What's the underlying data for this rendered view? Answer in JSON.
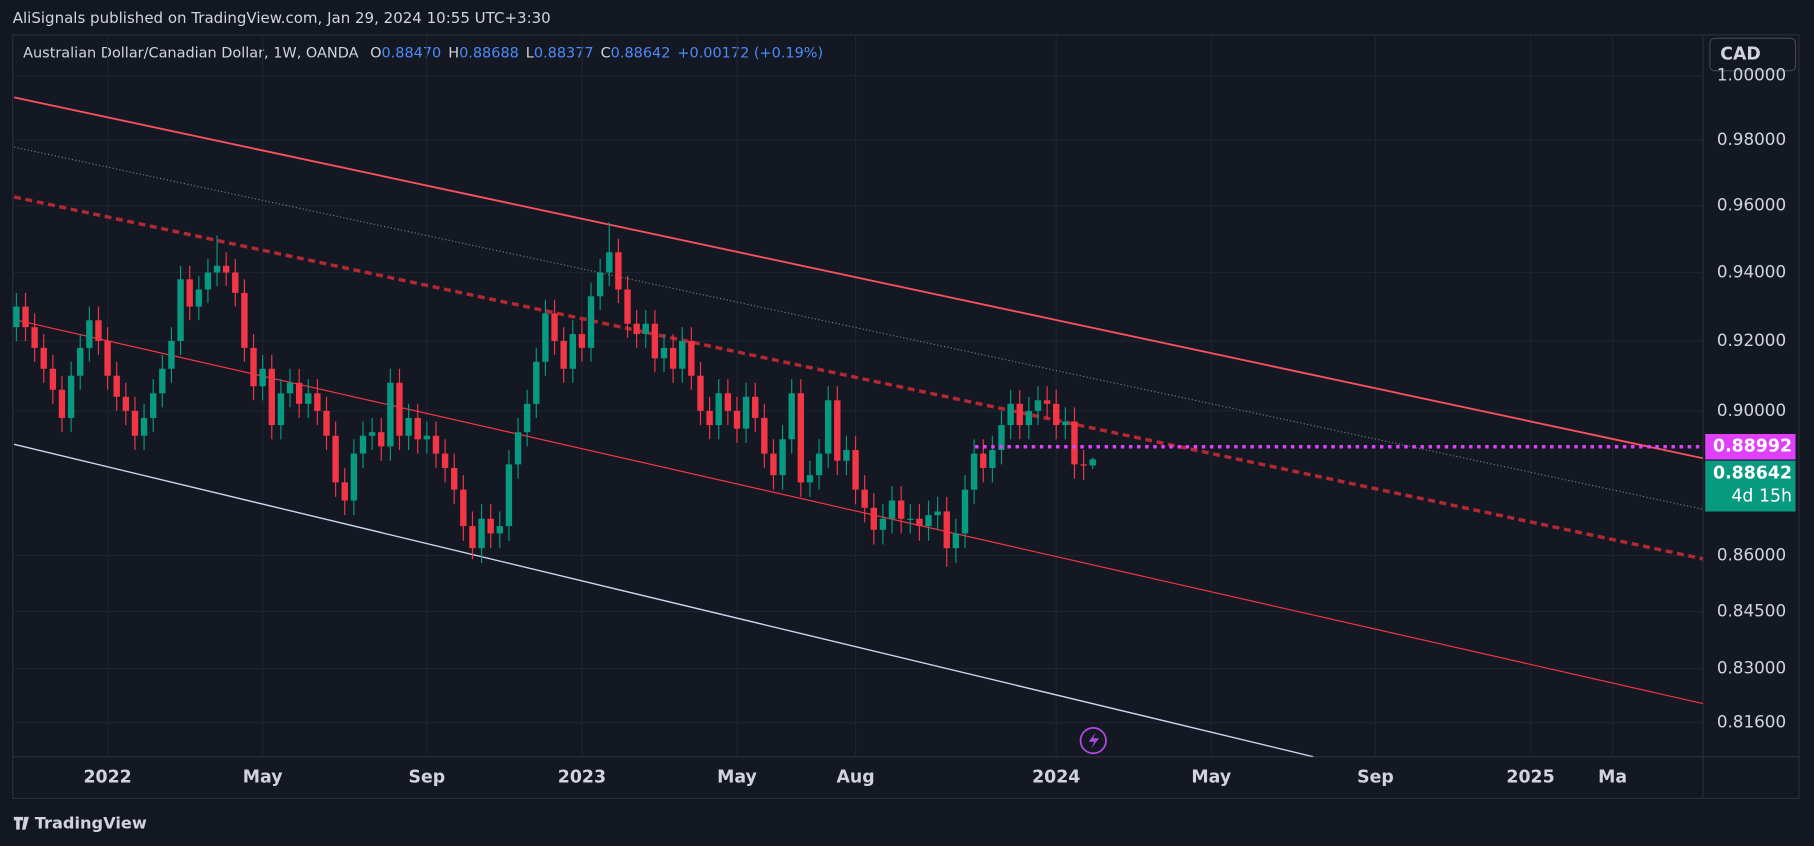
{
  "header": {
    "title": "AliSignals published on TradingView.com, Jan 29, 2024 10:55 UTC+3:30"
  },
  "footer": {
    "brand": "TradingView"
  },
  "currency_button": "CAD",
  "chart_data": {
    "type": "candlestick",
    "symbol": "Australian Dollar/Canadian Dollar, 1W, OANDA",
    "ohlc_legend": [
      {
        "key": "O",
        "value": "0.88470"
      },
      {
        "key": "H",
        "value": "0.88688"
      },
      {
        "key": "L",
        "value": "0.88377"
      },
      {
        "key": "C",
        "value": "0.88642"
      }
    ],
    "change": "+0.00172 (+0.19%)",
    "countdown": "4d 15h",
    "up_color": "#089981",
    "down_color": "#f23645",
    "log_scale": true,
    "grid": true,
    "ylim": [
      0.8073,
      1.0129
    ],
    "yticks": [
      {
        "value": 1,
        "label": "1.00000"
      },
      {
        "value": 0.98,
        "label": "0.98000"
      },
      {
        "value": 0.96,
        "label": "0.96000"
      },
      {
        "value": 0.94,
        "label": "0.94000"
      },
      {
        "value": 0.92,
        "label": "0.92000"
      },
      {
        "value": 0.9,
        "label": "0.90000"
      },
      {
        "value": 0.86,
        "label": "0.86000"
      },
      {
        "value": 0.845,
        "label": "0.84500"
      },
      {
        "value": 0.83,
        "label": "0.83000"
      },
      {
        "value": 0.816,
        "label": "0.81600"
      }
    ],
    "xlim": [
      -0.4,
      184.9
    ],
    "xticks": [
      {
        "value": 10,
        "label": "2022"
      },
      {
        "value": 27,
        "label": "May"
      },
      {
        "value": 45,
        "label": "Sep"
      },
      {
        "value": 62,
        "label": "2023"
      },
      {
        "value": 79,
        "label": "May"
      },
      {
        "value": 92,
        "label": "Aug"
      },
      {
        "value": 114,
        "label": "2024"
      },
      {
        "value": 131,
        "label": "May"
      },
      {
        "value": 149,
        "label": "Sep"
      },
      {
        "value": 166,
        "label": "2025"
      },
      {
        "value": 175,
        "label": "Ma"
      }
    ],
    "open": [
      0.924,
      0.93,
      0.924,
      0.918,
      0.912,
      0.906,
      0.898,
      0.91,
      0.918,
      0.926,
      0.92,
      0.91,
      0.904,
      0.9,
      0.893,
      0.898,
      0.905,
      0.912,
      0.92,
      0.938,
      0.93,
      0.935,
      0.94,
      0.942,
      0.94,
      0.934,
      0.918,
      0.907,
      0.912,
      0.896,
      0.905,
      0.908,
      0.902,
      0.905,
      0.9,
      0.893,
      0.88,
      0.875,
      0.888,
      0.893,
      0.894,
      0.89,
      0.908,
      0.893,
      0.898,
      0.892,
      0.893,
      0.888,
      0.884,
      0.878,
      0.868,
      0.862,
      0.87,
      0.866,
      0.868,
      0.885,
      0.894,
      0.902,
      0.914,
      0.928,
      0.92,
      0.912,
      0.922,
      0.918,
      0.933,
      0.94,
      0.946,
      0.935,
      0.925,
      0.922,
      0.925,
      0.915,
      0.918,
      0.912,
      0.92,
      0.91,
      0.9,
      0.896,
      0.905,
      0.9,
      0.895,
      0.904,
      0.898,
      0.888,
      0.882,
      0.892,
      0.905,
      0.88,
      0.882,
      0.888,
      0.903,
      0.886,
      0.889,
      0.878,
      0.873,
      0.867,
      0.87,
      0.875,
      0.87,
      0.87,
      0.868,
      0.871,
      0.872,
      0.862,
      0.866,
      0.878,
      0.888,
      0.884,
      0.889,
      0.896,
      0.902,
      0.896,
      0.9,
      0.903,
      0.902,
      0.896,
      0.897,
      0.885,
      0.8847
    ],
    "high": [
      0.934,
      0.934,
      0.928,
      0.922,
      0.916,
      0.91,
      0.914,
      0.922,
      0.93,
      0.93,
      0.924,
      0.914,
      0.908,
      0.904,
      0.902,
      0.909,
      0.916,
      0.924,
      0.942,
      0.942,
      0.939,
      0.944,
      0.951,
      0.946,
      0.944,
      0.938,
      0.922,
      0.916,
      0.916,
      0.909,
      0.912,
      0.912,
      0.909,
      0.909,
      0.904,
      0.897,
      0.884,
      0.892,
      0.897,
      0.898,
      0.898,
      0.912,
      0.912,
      0.902,
      0.902,
      0.897,
      0.897,
      0.892,
      0.888,
      0.882,
      0.872,
      0.874,
      0.874,
      0.872,
      0.889,
      0.898,
      0.906,
      0.918,
      0.932,
      0.932,
      0.924,
      0.926,
      0.926,
      0.937,
      0.944,
      0.955,
      0.95,
      0.939,
      0.929,
      0.929,
      0.929,
      0.922,
      0.922,
      0.924,
      0.924,
      0.914,
      0.904,
      0.909,
      0.909,
      0.904,
      0.908,
      0.908,
      0.902,
      0.892,
      0.896,
      0.909,
      0.909,
      0.886,
      0.892,
      0.907,
      0.907,
      0.893,
      0.893,
      0.882,
      0.877,
      0.874,
      0.879,
      0.879,
      0.874,
      0.874,
      0.875,
      0.876,
      0.876,
      0.87,
      0.882,
      0.892,
      0.892,
      0.893,
      0.9,
      0.906,
      0.906,
      0.904,
      0.907,
      0.907,
      0.906,
      0.901,
      0.901,
      0.889,
      0.88688
    ],
    "low": [
      0.92,
      0.92,
      0.914,
      0.908,
      0.902,
      0.894,
      0.894,
      0.906,
      0.914,
      0.916,
      0.906,
      0.9,
      0.896,
      0.889,
      0.889,
      0.894,
      0.901,
      0.908,
      0.916,
      0.926,
      0.926,
      0.931,
      0.936,
      0.936,
      0.93,
      0.914,
      0.903,
      0.903,
      0.892,
      0.892,
      0.901,
      0.898,
      0.898,
      0.896,
      0.889,
      0.876,
      0.871,
      0.871,
      0.884,
      0.889,
      0.886,
      0.886,
      0.889,
      0.889,
      0.888,
      0.888,
      0.884,
      0.88,
      0.874,
      0.864,
      0.859,
      0.858,
      0.862,
      0.862,
      0.864,
      0.881,
      0.89,
      0.898,
      0.91,
      0.916,
      0.908,
      0.908,
      0.914,
      0.914,
      0.929,
      0.936,
      0.931,
      0.921,
      0.918,
      0.918,
      0.911,
      0.911,
      0.908,
      0.908,
      0.906,
      0.896,
      0.892,
      0.892,
      0.896,
      0.891,
      0.891,
      0.894,
      0.884,
      0.878,
      0.878,
      0.888,
      0.876,
      0.876,
      0.878,
      0.884,
      0.882,
      0.882,
      0.874,
      0.869,
      0.863,
      0.863,
      0.866,
      0.866,
      0.866,
      0.864,
      0.864,
      0.867,
      0.857,
      0.858,
      0.862,
      0.874,
      0.88,
      0.88,
      0.885,
      0.892,
      0.892,
      0.892,
      0.896,
      0.898,
      0.892,
      0.892,
      0.881,
      0.8807,
      0.88377
    ],
    "close": [
      0.93,
      0.924,
      0.918,
      0.912,
      0.906,
      0.898,
      0.91,
      0.918,
      0.926,
      0.92,
      0.91,
      0.904,
      0.9,
      0.893,
      0.898,
      0.905,
      0.912,
      0.92,
      0.938,
      0.93,
      0.935,
      0.94,
      0.942,
      0.94,
      0.934,
      0.918,
      0.907,
      0.912,
      0.896,
      0.905,
      0.908,
      0.902,
      0.905,
      0.9,
      0.893,
      0.88,
      0.875,
      0.888,
      0.893,
      0.894,
      0.89,
      0.908,
      0.893,
      0.898,
      0.892,
      0.893,
      0.888,
      0.884,
      0.878,
      0.868,
      0.862,
      0.87,
      0.866,
      0.868,
      0.885,
      0.894,
      0.902,
      0.914,
      0.928,
      0.92,
      0.912,
      0.922,
      0.918,
      0.933,
      0.94,
      0.946,
      0.935,
      0.925,
      0.922,
      0.925,
      0.915,
      0.918,
      0.912,
      0.92,
      0.91,
      0.9,
      0.896,
      0.905,
      0.9,
      0.895,
      0.904,
      0.898,
      0.888,
      0.882,
      0.892,
      0.905,
      0.88,
      0.882,
      0.888,
      0.903,
      0.886,
      0.889,
      0.878,
      0.873,
      0.867,
      0.87,
      0.875,
      0.87,
      0.87,
      0.868,
      0.871,
      0.872,
      0.862,
      0.866,
      0.878,
      0.888,
      0.884,
      0.889,
      0.896,
      0.902,
      0.896,
      0.9,
      0.903,
      0.902,
      0.896,
      0.897,
      0.885,
      0.8847,
      0.88642
    ],
    "trendlines": [
      {
        "color": "#f7525f",
        "dash": false,
        "width": 1.6,
        "x": [
          -0.25,
          184.9
        ],
        "y": [
          0.9932,
          0.8867
        ]
      },
      {
        "color": "#787b86",
        "dash": "1 2",
        "width": 1,
        "x": [
          -0.25,
          184.9
        ],
        "y": [
          0.9778,
          0.8726
        ]
      },
      {
        "color": "#b22833",
        "dash": "6 4",
        "width": 3,
        "x": [
          -0.25,
          184.9
        ],
        "y": [
          0.9626,
          0.8591
        ]
      },
      {
        "color": "#f23645",
        "dash": false,
        "width": 1,
        "x": [
          -0.25,
          184.9
        ],
        "y": [
          0.9262,
          0.8209
        ]
      },
      {
        "color": "#d1d4f0",
        "dash": false,
        "width": 1.2,
        "x": [
          -0.25,
          142.2
        ],
        "y": [
          0.8906,
          0.8073
        ]
      }
    ],
    "alert_line": {
      "value": 0.88992,
      "x_start": 105.1,
      "color": "#e040fb"
    },
    "last_price_color": "#089981"
  }
}
